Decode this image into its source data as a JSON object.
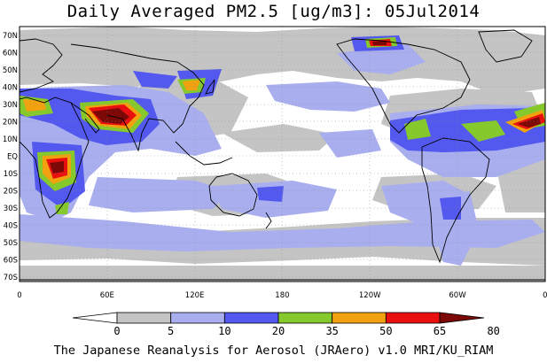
{
  "title": "Daily Averaged PM2.5 [ug/m3]: 05Jul2014",
  "footer": "The Japanese Reanalysis for Aerosol (JRAero) v1.0 MRI/KU_RIAM",
  "map": {
    "lat_labels": [
      "70N",
      "60N",
      "50N",
      "40N",
      "30N",
      "20N",
      "10N",
      "EQ",
      "10S",
      "20S",
      "30S",
      "40S",
      "50S",
      "60S",
      "70S"
    ],
    "lon_labels": [
      "0",
      "60E",
      "120E",
      "180",
      "120W",
      "60W",
      "0"
    ],
    "colors": {
      "c5": "#c4c4c4",
      "c10": "#a9aeef",
      "c20": "#5358ef",
      "c35": "#86c92c",
      "c50": "#f2a10f",
      "c65": "#e90f0f",
      "c80": "#7d0808",
      "coast": "#000000"
    }
  },
  "colorbar": {
    "labels": [
      "0",
      "5",
      "10",
      "20",
      "35",
      "50",
      "65",
      "80"
    ],
    "colors": [
      "#ffffff",
      "#c4c4c4",
      "#a9aeef",
      "#5358ef",
      "#86c92c",
      "#f2a10f",
      "#e90f0f",
      "#7d0808"
    ]
  }
}
